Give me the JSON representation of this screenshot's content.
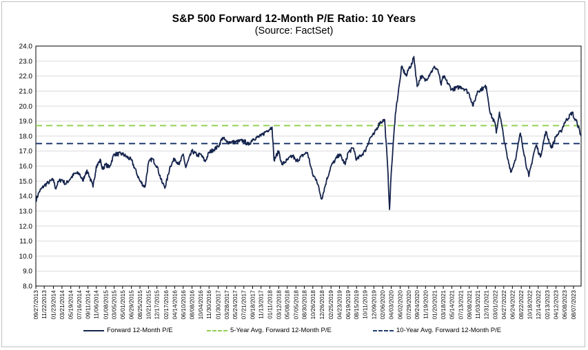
{
  "colors": {
    "series": "#14234b",
    "avg5": "#92d050",
    "avg10": "#1f3a6e",
    "grid": "#d9d9d9",
    "axis": "#000000"
  },
  "chart_data": {
    "type": "line",
    "title": "S&P 500 Forward 12-Month P/E Ratio: 10 Years",
    "subtitle": "(Source: FactSet)",
    "ylim": [
      8.0,
      24.0
    ],
    "y_ticks": [
      "8.0",
      "9.0",
      "10.0",
      "11.0",
      "12.0",
      "13.0",
      "14.0",
      "15.0",
      "16.0",
      "17.0",
      "18.0",
      "19.0",
      "20.0",
      "21.0",
      "22.0",
      "23.0",
      "24.0"
    ],
    "x_ticks": [
      "09/27/2013",
      "11/22/2013",
      "01/23/2014",
      "03/21/2014",
      "05/19/2014",
      "07/16/2014",
      "09/11/2014",
      "11/06/2014",
      "01/08/2015",
      "03/05/2015",
      "05/01/2015",
      "06/29/2015",
      "08/25/2015",
      "10/21/2015",
      "12/17/2015",
      "02/17/2016",
      "04/14/2016",
      "06/10/2016",
      "08/08/2016",
      "10/04/2016",
      "11/30/2016",
      "01/30/2017",
      "03/28/2017",
      "05/24/2017",
      "07/21/2017",
      "09/18/2017",
      "11/13/2017",
      "01/11/2018",
      "03/12/2018",
      "05/08/2018",
      "07/05/2018",
      "08/30/2018",
      "10/26/2018",
      "12/26/2018",
      "02/25/2019",
      "04/23/2019",
      "06/19/2019",
      "08/15/2019",
      "10/11/2019",
      "12/09/2019",
      "02/06/2020",
      "04/03/2020",
      "06/02/2020",
      "07/29/2020",
      "09/24/2020",
      "11/19/2020",
      "01/20/2021",
      "03/18/2021",
      "05/14/2021",
      "07/13/2021",
      "09/08/2021",
      "11/03/2021",
      "12/31/2021",
      "03/01/2022",
      "04/27/2022",
      "06/24/2022",
      "08/22/2022",
      "10/18/2022",
      "12/14/2022",
      "02/13/2023",
      "04/12/2023",
      "06/08/2023",
      "08/07/2023"
    ],
    "series": [
      {
        "name": "Forward 12-Month P/E",
        "style": "solid",
        "points": [
          [
            "09/27/2013",
            13.7
          ],
          [
            "10/20/2013",
            14.3
          ],
          [
            "11/22/2013",
            14.7
          ],
          [
            "12/20/2013",
            14.9
          ],
          [
            "01/23/2014",
            15.1
          ],
          [
            "02/05/2014",
            14.5
          ],
          [
            "02/28/2014",
            15.0
          ],
          [
            "03/21/2014",
            15.1
          ],
          [
            "04/14/2014",
            14.8
          ],
          [
            "05/19/2014",
            15.2
          ],
          [
            "06/15/2014",
            15.5
          ],
          [
            "07/16/2014",
            15.5
          ],
          [
            "08/07/2014",
            15.0
          ],
          [
            "08/28/2014",
            15.6
          ],
          [
            "09/11/2014",
            15.6
          ],
          [
            "10/15/2014",
            14.6
          ],
          [
            "11/06/2014",
            16.0
          ],
          [
            "12/05/2014",
            16.4
          ],
          [
            "12/16/2014",
            15.8
          ],
          [
            "01/08/2015",
            16.1
          ],
          [
            "02/01/2015",
            15.9
          ],
          [
            "03/05/2015",
            16.8
          ],
          [
            "05/01/2015",
            16.8
          ],
          [
            "06/29/2015",
            16.4
          ],
          [
            "08/25/2015",
            15.0
          ],
          [
            "09/28/2015",
            14.6
          ],
          [
            "10/21/2015",
            16.2
          ],
          [
            "11/15/2015",
            16.5
          ],
          [
            "12/17/2015",
            16.0
          ],
          [
            "01/20/2016",
            14.9
          ],
          [
            "02/11/2016",
            14.6
          ],
          [
            "03/15/2016",
            16.0
          ],
          [
            "04/14/2016",
            16.5
          ],
          [
            "05/15/2016",
            16.1
          ],
          [
            "06/10/2016",
            16.8
          ],
          [
            "06/27/2016",
            15.9
          ],
          [
            "08/08/2016",
            17.0
          ],
          [
            "09/15/2016",
            16.7
          ],
          [
            "10/04/2016",
            16.8
          ],
          [
            "11/04/2016",
            16.3
          ],
          [
            "11/30/2016",
            16.9
          ],
          [
            "12/30/2016",
            17.1
          ],
          [
            "01/30/2017",
            17.3
          ],
          [
            "03/01/2017",
            17.9
          ],
          [
            "03/28/2017",
            17.6
          ],
          [
            "05/24/2017",
            17.6
          ],
          [
            "07/21/2017",
            17.7
          ],
          [
            "08/21/2017",
            17.4
          ],
          [
            "09/18/2017",
            17.8
          ],
          [
            "11/13/2017",
            18.0
          ],
          [
            "12/15/2017",
            18.3
          ],
          [
            "01/26/2018",
            18.6
          ],
          [
            "02/08/2018",
            16.4
          ],
          [
            "03/12/2018",
            17.0
          ],
          [
            "04/02/2018",
            16.1
          ],
          [
            "05/08/2018",
            16.4
          ],
          [
            "06/15/2018",
            16.7
          ],
          [
            "07/05/2018",
            16.3
          ],
          [
            "08/30/2018",
            16.8
          ],
          [
            "09/20/2018",
            16.9
          ],
          [
            "10/26/2018",
            15.4
          ],
          [
            "11/20/2018",
            15.1
          ],
          [
            "12/24/2018",
            13.8
          ],
          [
            "01/25/2019",
            15.0
          ],
          [
            "02/25/2019",
            16.0
          ],
          [
            "04/23/2019",
            16.8
          ],
          [
            "05/31/2019",
            16.1
          ],
          [
            "06/19/2019",
            16.9
          ],
          [
            "07/26/2019",
            17.2
          ],
          [
            "08/15/2019",
            16.4
          ],
          [
            "10/11/2019",
            17.0
          ],
          [
            "11/15/2019",
            17.9
          ],
          [
            "12/09/2019",
            18.1
          ],
          [
            "01/17/2020",
            18.9
          ],
          [
            "02/06/2020",
            19.0
          ],
          [
            "02/19/2020",
            19.1
          ],
          [
            "03/10/2020",
            16.0
          ],
          [
            "03/23/2020",
            13.1
          ],
          [
            "04/03/2020",
            15.5
          ],
          [
            "05/01/2020",
            19.5
          ],
          [
            "06/02/2020",
            21.8
          ],
          [
            "06/10/2020",
            22.6
          ],
          [
            "07/15/2020",
            22.0
          ],
          [
            "07/29/2020",
            22.5
          ],
          [
            "08/20/2020",
            22.8
          ],
          [
            "09/02/2020",
            23.3
          ],
          [
            "09/24/2020",
            21.3
          ],
          [
            "10/20/2020",
            22.0
          ],
          [
            "11/19/2020",
            21.7
          ],
          [
            "12/21/2020",
            22.2
          ],
          [
            "01/20/2021",
            22.6
          ],
          [
            "02/10/2021",
            22.4
          ],
          [
            "03/04/2021",
            21.4
          ],
          [
            "03/18/2021",
            22.0
          ],
          [
            "05/14/2021",
            21.1
          ],
          [
            "07/13/2021",
            21.3
          ],
          [
            "08/15/2021",
            21.1
          ],
          [
            "09/08/2021",
            20.8
          ],
          [
            "10/04/2021",
            20.0
          ],
          [
            "11/03/2021",
            21.0
          ],
          [
            "12/31/2021",
            21.3
          ],
          [
            "01/27/2022",
            19.5
          ],
          [
            "03/01/2022",
            18.8
          ],
          [
            "03/08/2022",
            18.2
          ],
          [
            "03/29/2022",
            19.6
          ],
          [
            "04/27/2022",
            17.9
          ],
          [
            "05/20/2022",
            16.6
          ],
          [
            "06/16/2022",
            15.6
          ],
          [
            "07/20/2022",
            16.7
          ],
          [
            "08/16/2022",
            18.2
          ],
          [
            "09/30/2022",
            15.8
          ],
          [
            "10/12/2022",
            15.3
          ],
          [
            "11/15/2022",
            16.9
          ],
          [
            "12/01/2022",
            17.4
          ],
          [
            "12/28/2022",
            16.6
          ],
          [
            "02/02/2023",
            18.3
          ],
          [
            "03/13/2023",
            17.2
          ],
          [
            "04/12/2023",
            18.0
          ],
          [
            "05/15/2023",
            18.3
          ],
          [
            "06/08/2023",
            18.9
          ],
          [
            "07/31/2023",
            19.6
          ],
          [
            "08/10/2023",
            19.2
          ],
          [
            "08/31/2023",
            18.9
          ],
          [
            "09/27/2023",
            18.0
          ]
        ]
      },
      {
        "name": "5-Year Avg. Forward 12-Month P/E",
        "style": "dashed",
        "constant": 18.7
      },
      {
        "name": "10-Year Avg. Forward 12-Month P/E",
        "style": "dashed",
        "constant": 17.5
      }
    ]
  }
}
